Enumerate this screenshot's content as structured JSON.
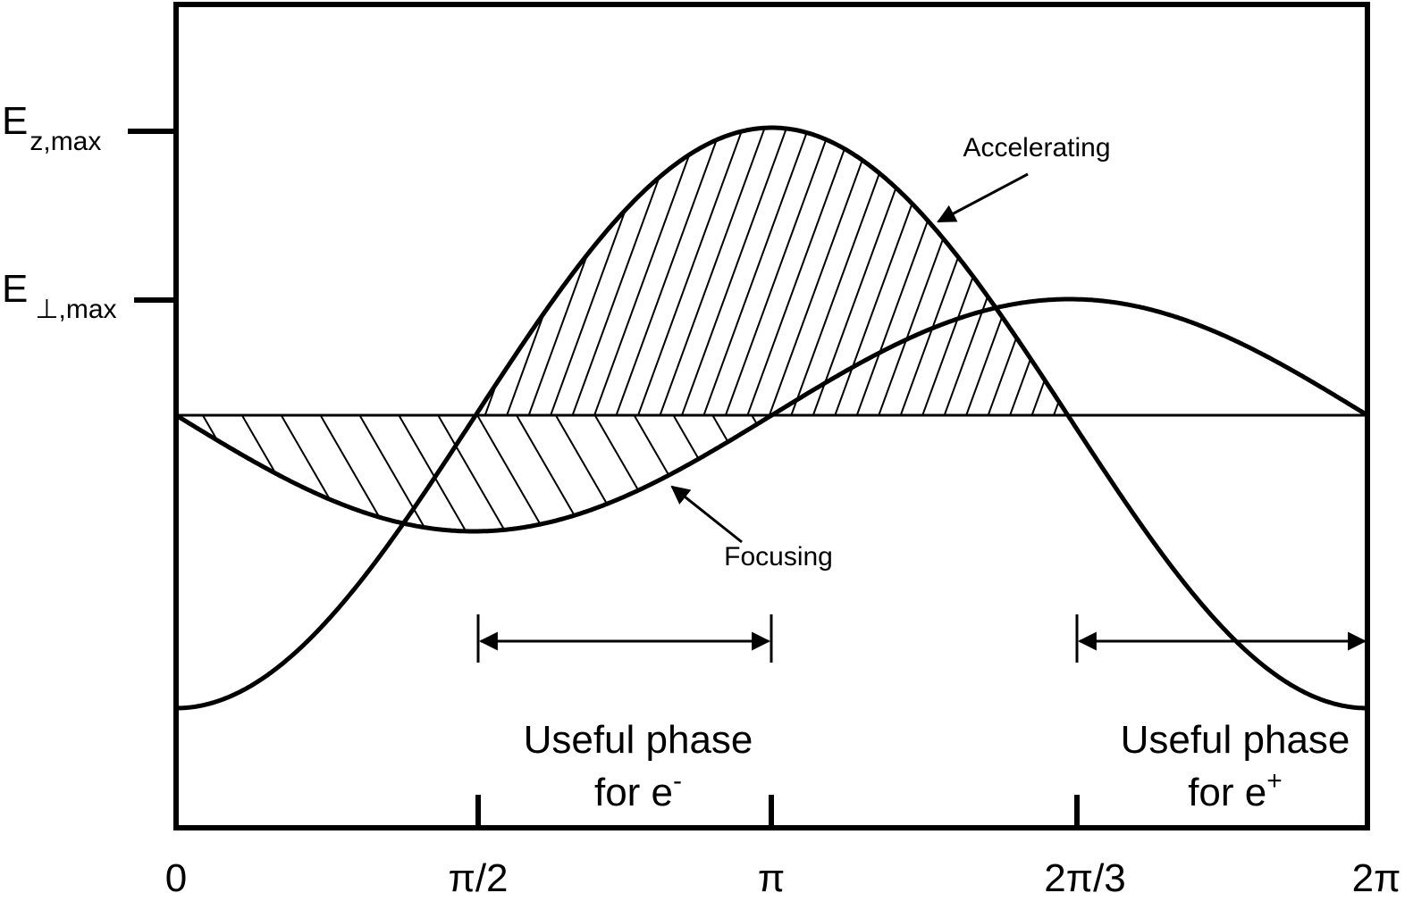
{
  "y_labels": [
    {
      "symbol": "E",
      "subscript": "z,max"
    },
    {
      "symbol": "E",
      "subscript": "⊥,max"
    }
  ],
  "x_labels": [
    "0",
    "π/2",
    "π",
    "2π/3",
    "2π"
  ],
  "annotations": {
    "accelerating": "Accelerating",
    "focusing": "Focusing"
  },
  "phase_labels": [
    {
      "line1": "Useful phase",
      "line2": "for e",
      "sup": "-"
    },
    {
      "line1": "Useful phase",
      "line2": "for e",
      "sup": "+"
    }
  ]
}
